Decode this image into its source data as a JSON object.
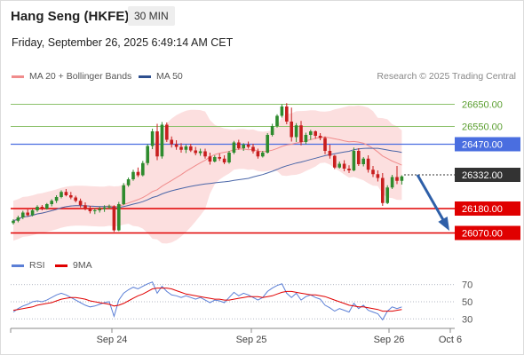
{
  "header": {
    "title": "Hang Seng (HKFE)",
    "timeframe": "30 MIN",
    "datetime": "Friday, September 26, 2025 6:49:14 AM CET",
    "credit": "Research © 2025 Trading Central"
  },
  "legend": {
    "main": [
      {
        "name": "MA 20 + Bollinger Bands",
        "color": "#f08c8c"
      },
      {
        "name": "MA 50",
        "color": "#2e4f8f"
      }
    ],
    "rsi": [
      {
        "name": "RSI",
        "color": "#5b7fd6"
      },
      {
        "name": "9MA",
        "color": "#e00000"
      }
    ]
  },
  "chart_data": [
    {
      "type": "candlestick",
      "ylim": [
        26040,
        26720
      ],
      "x_ticks": [
        "Sep 24",
        "Sep 25",
        "Sep 26",
        "Oct 6"
      ],
      "levels": [
        {
          "value": 26650,
          "label": "26650.00",
          "style": "resistance-green",
          "color": "#8cc16b",
          "text_color": "#5a9e2f"
        },
        {
          "value": 26550,
          "label": "26550.00",
          "style": "resistance-green",
          "color": "#8cc16b",
          "text_color": "#5a9e2f"
        },
        {
          "value": 26470,
          "label": "26470.00",
          "style": "pivot",
          "color": "#4a6ee0"
        },
        {
          "value": 26332,
          "label": "26332.00",
          "style": "last-price",
          "color": "#333333"
        },
        {
          "value": 26180,
          "label": "26180.00",
          "style": "support-red",
          "color": "#e00000"
        },
        {
          "value": 26070,
          "label": "26070.00",
          "style": "support-red",
          "color": "#e00000"
        }
      ],
      "forecast_arrow": {
        "from": 26332,
        "to": 26070,
        "color": "#2e5fa8"
      },
      "candles": [
        [
          26115,
          26132,
          26108,
          26125
        ],
        [
          26125,
          26148,
          26118,
          26140
        ],
        [
          26140,
          26170,
          26132,
          26162
        ],
        [
          26162,
          26176,
          26145,
          26150
        ],
        [
          26150,
          26178,
          26145,
          26172
        ],
        [
          26172,
          26195,
          26165,
          26188
        ],
        [
          26188,
          26196,
          26172,
          26180
        ],
        [
          26180,
          26205,
          26175,
          26200
        ],
        [
          26200,
          26222,
          26190,
          26215
        ],
        [
          26215,
          26240,
          26205,
          26232
        ],
        [
          26232,
          26262,
          26226,
          26255
        ],
        [
          26255,
          26268,
          26235,
          26240
        ],
        [
          26240,
          26255,
          26222,
          26230
        ],
        [
          26230,
          26238,
          26208,
          26215
        ],
        [
          26215,
          26225,
          26185,
          26195
        ],
        [
          26195,
          26208,
          26172,
          26180
        ],
        [
          26180,
          26192,
          26158,
          26168
        ],
        [
          26168,
          26182,
          26155,
          26172
        ],
        [
          26172,
          26188,
          26162,
          26178
        ],
        [
          26178,
          26195,
          26165,
          26185
        ],
        [
          26185,
          26198,
          26178,
          26190
        ],
        [
          26190,
          26195,
          26075,
          26082
        ],
        [
          26082,
          26210,
          26078,
          26200
        ],
        [
          26200,
          26295,
          26195,
          26285
        ],
        [
          26285,
          26320,
          26278,
          26312
        ],
        [
          26312,
          26355,
          26305,
          26345
        ],
        [
          26345,
          26365,
          26322,
          26330
        ],
        [
          26330,
          26395,
          26325,
          26385
        ],
        [
          26385,
          26470,
          26375,
          26462
        ],
        [
          26462,
          26540,
          26448,
          26528
        ],
        [
          26528,
          26562,
          26398,
          26415
        ],
        [
          26415,
          26570,
          26405,
          26558
        ],
        [
          26558,
          26568,
          26480,
          26490
        ],
        [
          26490,
          26505,
          26455,
          26470
        ],
        [
          26470,
          26488,
          26445,
          26458
        ],
        [
          26458,
          26475,
          26432,
          26445
        ],
        [
          26445,
          26468,
          26430,
          26460
        ],
        [
          26460,
          26472,
          26435,
          26442
        ],
        [
          26442,
          26458,
          26420,
          26430
        ],
        [
          26430,
          26450,
          26418,
          26438
        ],
        [
          26438,
          26450,
          26405,
          26415
        ],
        [
          26415,
          26432,
          26378,
          26392
        ],
        [
          26392,
          26420,
          26388,
          26412
        ],
        [
          26412,
          26428,
          26395,
          26405
        ],
        [
          26405,
          26420,
          26380,
          26388
        ],
        [
          26388,
          26440,
          26382,
          26432
        ],
        [
          26432,
          26485,
          26425,
          26478
        ],
        [
          26478,
          26490,
          26445,
          26452
        ],
        [
          26452,
          26475,
          26440,
          26468
        ],
        [
          26468,
          26482,
          26450,
          26458
        ],
        [
          26458,
          26472,
          26428,
          26438
        ],
        [
          26438,
          26450,
          26405,
          26415
        ],
        [
          26415,
          26440,
          26410,
          26432
        ],
        [
          26432,
          26520,
          26428,
          26512
        ],
        [
          26512,
          26562,
          26505,
          26552
        ],
        [
          26552,
          26605,
          26545,
          26598
        ],
        [
          26598,
          26650,
          26590,
          26640
        ],
        [
          26640,
          26655,
          26560,
          26572
        ],
        [
          26572,
          26635,
          26482,
          26502
        ],
        [
          26502,
          26565,
          26480,
          26555
        ],
        [
          26555,
          26575,
          26465,
          26480
        ],
        [
          26480,
          26522,
          26470,
          26512
        ],
        [
          26512,
          26535,
          26490,
          26528
        ],
        [
          26528,
          26532,
          26495,
          26508
        ],
        [
          26508,
          26520,
          26488,
          26498
        ],
        [
          26498,
          26505,
          26425,
          26440
        ],
        [
          26440,
          26468,
          26405,
          26418
        ],
        [
          26418,
          26422,
          26358,
          26365
        ],
        [
          26365,
          26392,
          26360,
          26382
        ],
        [
          26382,
          26398,
          26348,
          26360
        ],
        [
          26360,
          26375,
          26340,
          26352
        ],
        [
          26352,
          26455,
          26348,
          26440
        ],
        [
          26440,
          26452,
          26372,
          26380
        ],
        [
          26380,
          26412,
          26370,
          26405
        ],
        [
          26405,
          26420,
          26342,
          26355
        ],
        [
          26355,
          26372,
          26322,
          26335
        ],
        [
          26335,
          26352,
          26302,
          26318
        ],
        [
          26318,
          26340,
          26192,
          26205
        ],
        [
          26205,
          26285,
          26200,
          26275
        ],
        [
          26275,
          26332,
          26268,
          26322
        ],
        [
          26322,
          26372,
          26290,
          26305
        ],
        [
          26305,
          26330,
          26288,
          26325
        ]
      ]
    },
    {
      "type": "line",
      "name": "RSI panel",
      "ylim": [
        22,
        78
      ],
      "y_ticks": [
        70,
        50,
        30
      ],
      "dotted_levels": [
        70,
        50,
        30
      ],
      "series": [
        {
          "name": "RSI",
          "color": "#5b7fd6",
          "values": [
            38,
            42,
            45,
            47,
            50,
            51,
            50,
            52,
            55,
            58,
            60,
            58,
            55,
            52,
            49,
            46,
            44,
            45,
            47,
            49,
            50,
            33,
            52,
            60,
            64,
            67,
            65,
            68,
            71,
            73,
            60,
            68,
            62,
            58,
            57,
            55,
            57,
            55,
            53,
            55,
            52,
            49,
            52,
            51,
            49,
            55,
            61,
            57,
            60,
            58,
            55,
            52,
            55,
            62,
            66,
            69,
            71,
            60,
            55,
            60,
            52,
            56,
            58,
            55,
            53,
            46,
            43,
            39,
            42,
            40,
            38,
            48,
            42,
            46,
            40,
            38,
            36,
            29,
            39,
            44,
            42,
            44
          ]
        },
        {
          "name": "9MA",
          "color": "#e00000",
          "values": [
            40,
            41,
            42,
            43,
            44,
            46,
            47,
            48,
            49,
            51,
            53,
            54,
            55,
            55,
            54,
            53,
            51,
            50,
            49,
            48,
            47,
            45,
            46,
            48,
            51,
            54,
            57,
            59,
            62,
            65,
            66,
            66,
            66,
            65,
            63,
            61,
            59,
            58,
            57,
            56,
            55,
            54,
            53,
            53,
            52,
            52,
            53,
            54,
            55,
            56,
            56,
            56,
            55,
            56,
            57,
            59,
            61,
            62,
            62,
            61,
            60,
            59,
            58,
            58,
            57,
            56,
            54,
            52,
            50,
            48,
            46,
            45,
            44,
            44,
            43,
            42,
            41,
            39,
            39,
            39,
            40,
            41
          ]
        }
      ]
    }
  ]
}
